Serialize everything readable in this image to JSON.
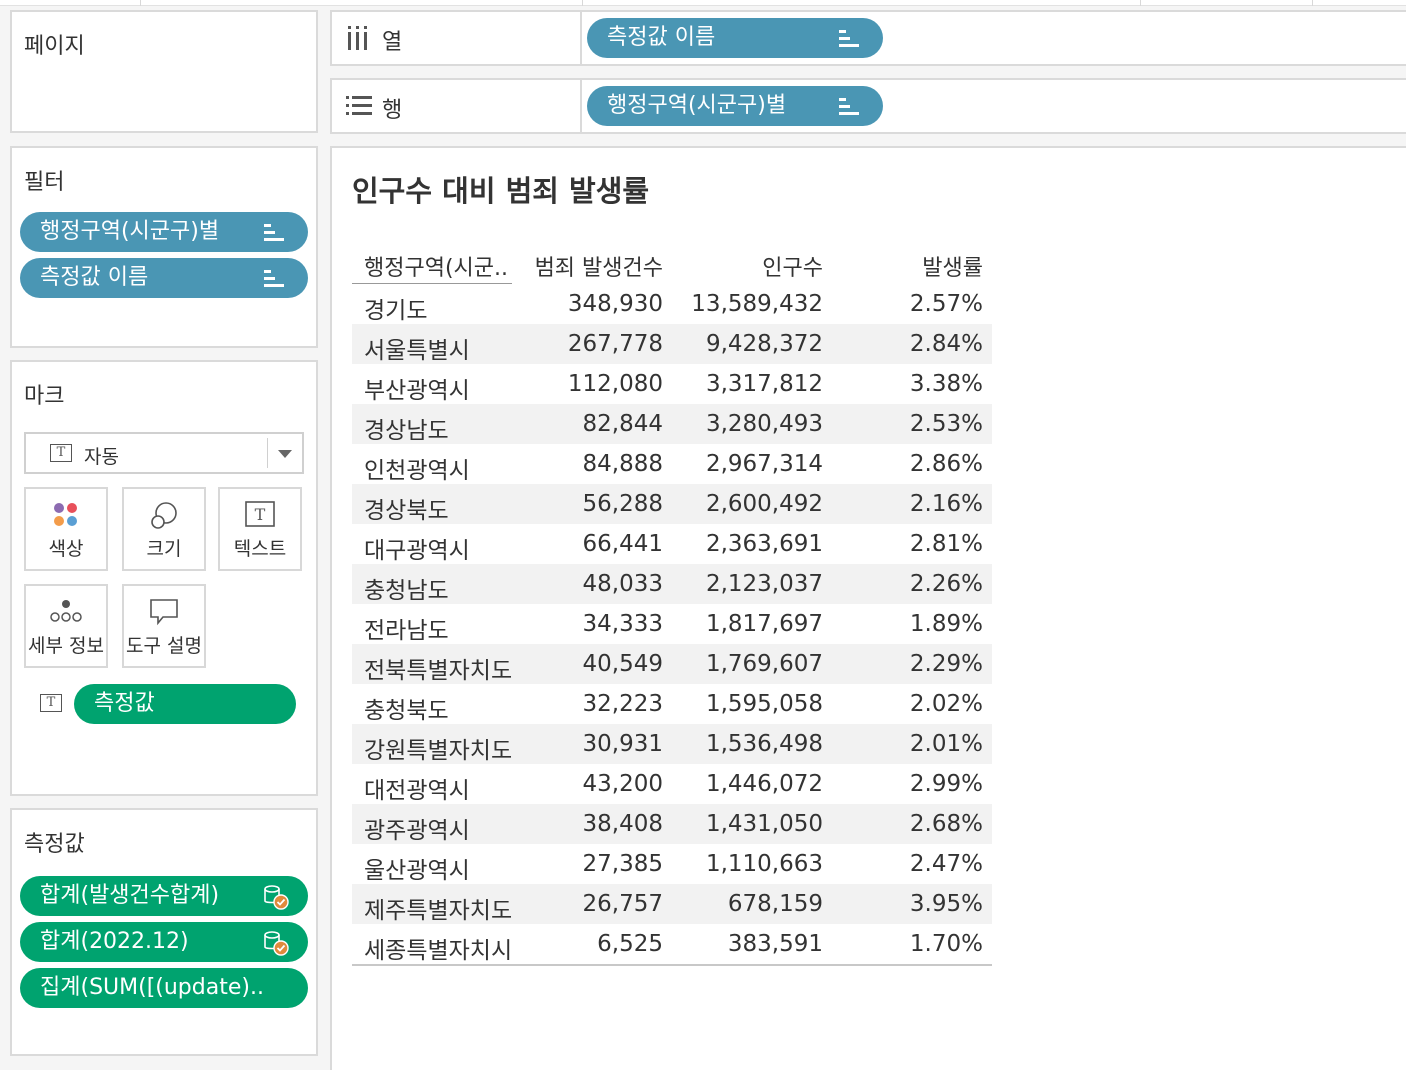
{
  "shelves": {
    "columns": {
      "label": "열",
      "pill": "측정값 이름"
    },
    "rows": {
      "label": "행",
      "pill": "행정구역(시군구)별"
    }
  },
  "pages": {
    "title": "페이지"
  },
  "filters": {
    "title": "필터",
    "items": [
      "행정구역(시군구)별",
      "측정값 이름"
    ]
  },
  "marks": {
    "title": "마크",
    "type": "자동",
    "cards": {
      "color": "색상",
      "size": "크기",
      "text": "텍스트",
      "detail": "세부 정보",
      "tooltip": "도구 설명"
    },
    "text_pill": "측정값"
  },
  "measure_values": {
    "title": "측정값",
    "items": [
      "합계(발생건수합계)",
      "합계(2022.12)",
      "집계(SUM([(update).."
    ]
  },
  "colors": {
    "pill_blue": "#4a96b4",
    "pill_green": "#00a36f",
    "calc_badge": "#e08a3c"
  },
  "view": {
    "title": "인구수 대비 범죄 발생률",
    "table": {
      "headers": [
        "행정구역(시군..",
        "범죄 발생건수",
        "인구수",
        "발생률"
      ],
      "rows": [
        [
          "경기도",
          "348,930",
          "13,589,432",
          "2.57%"
        ],
        [
          "서울특별시",
          "267,778",
          "9,428,372",
          "2.84%"
        ],
        [
          "부산광역시",
          "112,080",
          "3,317,812",
          "3.38%"
        ],
        [
          "경상남도",
          "82,844",
          "3,280,493",
          "2.53%"
        ],
        [
          "인천광역시",
          "84,888",
          "2,967,314",
          "2.86%"
        ],
        [
          "경상북도",
          "56,288",
          "2,600,492",
          "2.16%"
        ],
        [
          "대구광역시",
          "66,441",
          "2,363,691",
          "2.81%"
        ],
        [
          "충청남도",
          "48,033",
          "2,123,037",
          "2.26%"
        ],
        [
          "전라남도",
          "34,333",
          "1,817,697",
          "1.89%"
        ],
        [
          "전북특별자치도",
          "40,549",
          "1,769,607",
          "2.29%"
        ],
        [
          "충청북도",
          "32,223",
          "1,595,058",
          "2.02%"
        ],
        [
          "강원특별자치도",
          "30,931",
          "1,536,498",
          "2.01%"
        ],
        [
          "대전광역시",
          "43,200",
          "1,446,072",
          "2.99%"
        ],
        [
          "광주광역시",
          "38,408",
          "1,431,050",
          "2.68%"
        ],
        [
          "울산광역시",
          "27,385",
          "1,110,663",
          "2.47%"
        ],
        [
          "제주특별자치도",
          "26,757",
          "678,159",
          "3.95%"
        ],
        [
          "세종특별자치시",
          "6,525",
          "383,591",
          "1.70%"
        ]
      ]
    }
  }
}
